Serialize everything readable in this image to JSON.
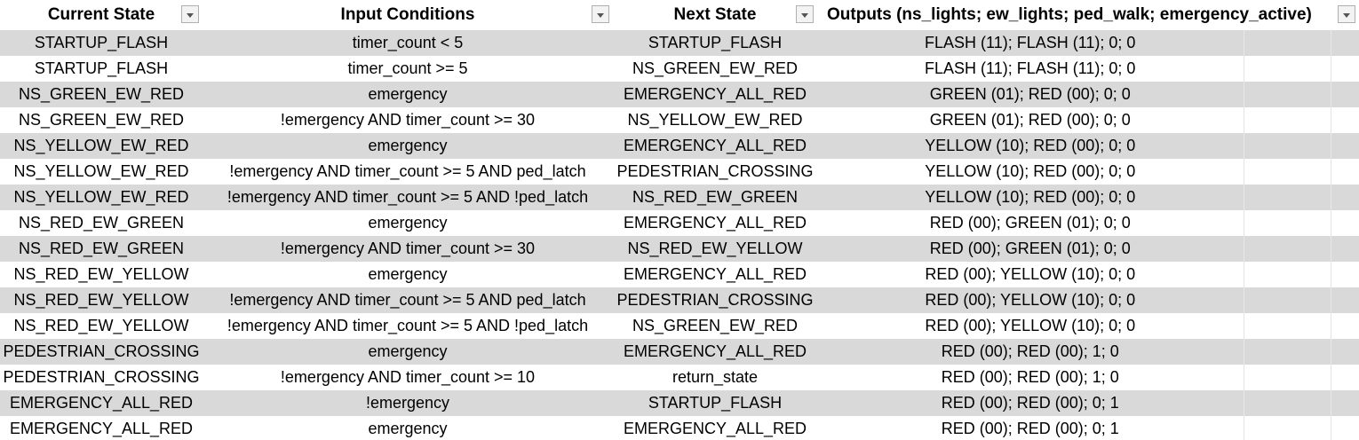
{
  "headers": [
    "Current State",
    "Input Conditions",
    "Next State",
    "Outputs (ns_lights; ew_lights; ped_walk; emergency_active)"
  ],
  "rows": [
    [
      "STARTUP_FLASH",
      "timer_count < 5",
      "STARTUP_FLASH",
      "FLASH (11); FLASH (11); 0; 0"
    ],
    [
      "STARTUP_FLASH",
      "timer_count >= 5",
      "NS_GREEN_EW_RED",
      "FLASH (11); FLASH (11); 0; 0"
    ],
    [
      "NS_GREEN_EW_RED",
      "emergency",
      "EMERGENCY_ALL_RED",
      "GREEN (01); RED (00); 0; 0"
    ],
    [
      "NS_GREEN_EW_RED",
      "!emergency AND timer_count >= 30",
      "NS_YELLOW_EW_RED",
      "GREEN (01); RED (00); 0; 0"
    ],
    [
      "NS_YELLOW_EW_RED",
      "emergency",
      "EMERGENCY_ALL_RED",
      "YELLOW (10); RED (00); 0; 0"
    ],
    [
      "NS_YELLOW_EW_RED",
      "!emergency AND timer_count >= 5 AND ped_latch",
      "PEDESTRIAN_CROSSING",
      "YELLOW (10); RED (00); 0; 0"
    ],
    [
      "NS_YELLOW_EW_RED",
      "!emergency AND timer_count >= 5 AND !ped_latch",
      "NS_RED_EW_GREEN",
      "YELLOW (10); RED (00); 0; 0"
    ],
    [
      "NS_RED_EW_GREEN",
      "emergency",
      "EMERGENCY_ALL_RED",
      "RED (00); GREEN (01); 0; 0"
    ],
    [
      "NS_RED_EW_GREEN",
      "!emergency AND timer_count >= 30",
      "NS_RED_EW_YELLOW",
      "RED (00); GREEN (01); 0; 0"
    ],
    [
      "NS_RED_EW_YELLOW",
      "emergency",
      "EMERGENCY_ALL_RED",
      "RED (00); YELLOW (10); 0; 0"
    ],
    [
      "NS_RED_EW_YELLOW",
      "!emergency AND timer_count >= 5 AND ped_latch",
      "PEDESTRIAN_CROSSING",
      "RED (00); YELLOW (10); 0; 0"
    ],
    [
      "NS_RED_EW_YELLOW",
      "!emergency AND timer_count >= 5 AND !ped_latch",
      "NS_GREEN_EW_RED",
      "RED (00); YELLOW (10); 0; 0"
    ],
    [
      "PEDESTRIAN_CROSSING",
      "emergency",
      "EMERGENCY_ALL_RED",
      "RED (00); RED (00); 1; 0"
    ],
    [
      "PEDESTRIAN_CROSSING",
      "!emergency AND timer_count >= 10",
      "return_state",
      "RED (00); RED (00); 1; 0"
    ],
    [
      "EMERGENCY_ALL_RED",
      "!emergency",
      "STARTUP_FLASH",
      "RED (00); RED (00); 0; 1"
    ],
    [
      "EMERGENCY_ALL_RED",
      "emergency",
      "EMERGENCY_ALL_RED",
      "RED (00); RED (00); 0; 1"
    ]
  ],
  "icons": {
    "filter": "dropdown-filter-icon"
  },
  "colors": {
    "band": "#d9d9d9",
    "plain": "#ffffff"
  }
}
